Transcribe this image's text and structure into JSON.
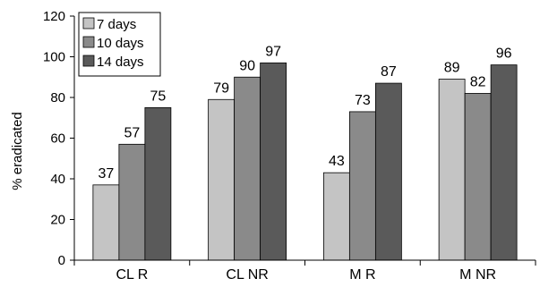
{
  "chart_data": {
    "type": "bar",
    "title": "",
    "xlabel": "",
    "ylabel": "% eradicated",
    "ylim": [
      0,
      120
    ],
    "yticks": [
      0,
      20,
      40,
      60,
      80,
      100,
      120
    ],
    "grid": false,
    "legend_position": "top-left",
    "categories": [
      "CL R",
      "CL NR",
      "M R",
      "M NR"
    ],
    "series": [
      {
        "name": "7 days",
        "color": "#c4c4c4",
        "values": [
          37,
          79,
          43,
          89
        ]
      },
      {
        "name": "10 days",
        "color": "#8a8a8a",
        "values": [
          57,
          90,
          73,
          82
        ]
      },
      {
        "name": "14 days",
        "color": "#5a5a5a",
        "values": [
          75,
          97,
          87,
          96
        ]
      }
    ]
  }
}
